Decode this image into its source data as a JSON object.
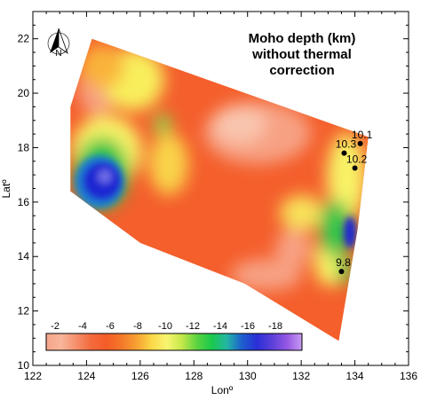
{
  "title_lines": [
    "Moho depth (km)",
    "without thermal",
    "correction"
  ],
  "north_arrow": {
    "icon": "north-arrow-icon",
    "letter": "N"
  },
  "axes": {
    "x_label": "Lonº",
    "y_label": "Latº",
    "x_range": [
      122,
      136
    ],
    "y_range": [
      10,
      23
    ],
    "x_ticks": [
      "122",
      "124",
      "126",
      "128",
      "130",
      "132",
      "134",
      "136"
    ],
    "x_tick_values": [
      122,
      124,
      126,
      128,
      130,
      132,
      134,
      136
    ],
    "y_ticks": [
      "10",
      "12",
      "14",
      "16",
      "18",
      "20",
      "22"
    ],
    "y_tick_values": [
      10,
      12,
      14,
      16,
      18,
      20,
      22
    ]
  },
  "stations": [
    {
      "label": "10.1",
      "lon": 134.2,
      "lat": 18.15
    },
    {
      "label": "10.3",
      "lon": 133.6,
      "lat": 17.8
    },
    {
      "label": "10.2",
      "lon": 134.0,
      "lat": 17.25
    },
    {
      "label": "9.8",
      "lon": 133.5,
      "lat": 13.45
    }
  ],
  "colorbar": {
    "labels": [
      "-2",
      "-4",
      "-6",
      "-8",
      "-10",
      "-12",
      "-14",
      "-16",
      "-18"
    ],
    "colors": [
      "#f6a48a",
      "#f7b69a",
      "#f58f6c",
      "#f46a3c",
      "#f45c28",
      "#f4782a",
      "#f7a032",
      "#fbd848",
      "#f8f570",
      "#c6e84a",
      "#5ed441",
      "#1ac94c",
      "#22b6a4",
      "#1d5fcf",
      "#2a2fd7",
      "#5a3fd8",
      "#9457e4",
      "#c79bf2"
    ]
  },
  "region_polygon_lonlat": [
    [
      123.4,
      16.4
    ],
    [
      123.4,
      19.5
    ],
    [
      124.2,
      22.0
    ],
    [
      134.5,
      18.4
    ],
    [
      134.1,
      15.0
    ],
    [
      133.4,
      10.9
    ],
    [
      129.9,
      13.0
    ],
    [
      126.0,
      14.5
    ]
  ],
  "colors": {
    "background": "#f45f2c",
    "salmon": "#f7a183",
    "yellow": "#f8f266",
    "green": "#28c54a",
    "blue": "#1e25d2",
    "violet": "#6a6ae6"
  }
}
